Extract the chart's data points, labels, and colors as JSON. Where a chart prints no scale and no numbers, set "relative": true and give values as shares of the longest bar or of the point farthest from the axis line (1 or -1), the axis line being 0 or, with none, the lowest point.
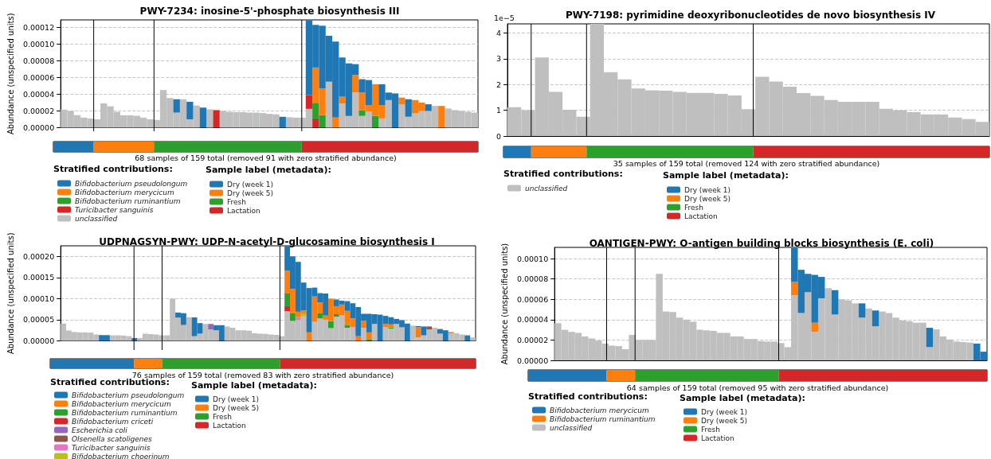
{
  "chart_data": [
    {
      "type": "bar",
      "title": "PWY-7234: inosine-5'-phosphate biosynthesis III",
      "ylabel": "Abundance (unspecified units)",
      "legend_title": "Stratified contributions:",
      "stacked": true,
      "grid": "y",
      "tick_labels": "y",
      "legend": "bottom left",
      "categories": [
        null,
        null,
        null,
        null,
        null,
        null,
        null,
        null,
        null,
        null,
        null,
        null,
        null,
        null,
        null,
        null,
        null,
        null,
        null,
        null,
        null,
        null,
        null,
        null,
        null,
        null,
        null,
        null,
        null,
        null,
        null,
        null,
        null,
        null,
        null,
        null,
        null,
        null,
        null,
        null,
        null,
        null,
        null,
        null,
        null,
        null,
        null,
        null,
        null,
        null,
        null,
        null,
        null,
        null,
        null,
        null,
        null,
        null,
        null,
        null,
        null,
        null,
        null
      ],
      "ylim": [
        0,
        0.000129
      ],
      "yticks": [
        {
          "value": 0,
          "label": "0.00000"
        },
        {
          "value": 2e-05,
          "label": "0.00002"
        },
        {
          "value": 4e-05,
          "label": "0.00004"
        },
        {
          "value": 6e-05,
          "label": "0.00006"
        },
        {
          "value": 8e-05,
          "label": "0.00008"
        },
        {
          "value": 0.0001,
          "label": "0.00010"
        },
        {
          "value": 0.00012,
          "label": "0.00012"
        }
      ],
      "series": [
        {
          "name": "unclassified",
          "color": "#bfbfbf",
          "values": [
            2.15e-05,
            2e-05,
            1.5e-05,
            1.2e-05,
            1.1e-05,
            1e-05,
            2.9e-05,
            2.55e-05,
            1.9e-05,
            1.48e-05,
            1.48e-05,
            1.42e-05,
            1.2e-05,
            1e-05,
            9.2e-06,
            4.5e-05,
            3.55e-05,
            1.8e-05,
            3.4e-05,
            1e-05,
            2.65e-05,
            null,
            2.2e-05,
            null,
            2e-05,
            1.9e-05,
            1.85e-05,
            1.85e-05,
            1.8e-05,
            1.8e-05,
            1.75e-05,
            1.65e-05,
            1.6e-05,
            null,
            1.25e-05,
            1.2e-05,
            1.2e-05,
            2.25e-05,
            null,
            null,
            5.5e-05,
            null,
            2.9e-05,
            1.4e-05,
            4.2e-05,
            1.4e-05,
            1.9e-05,
            null,
            1.1e-05,
            3.3e-05,
            null,
            2.8e-05,
            1.3e-05,
            1.7e-05,
            2e-05,
            2e-05,
            2.6e-05,
            null,
            2.3e-05,
            2.1e-05,
            2e-05,
            1.9e-05,
            1.8e-05
          ]
        },
        {
          "name": "Turicibacter sanguinis",
          "color": "#d62728",
          "values": [
            null,
            null,
            null,
            null,
            null,
            null,
            null,
            null,
            null,
            null,
            null,
            null,
            null,
            null,
            null,
            null,
            null,
            null,
            null,
            null,
            null,
            null,
            null,
            2.1e-05,
            null,
            null,
            null,
            null,
            null,
            null,
            null,
            null,
            null,
            null,
            null,
            null,
            null,
            1.65e-05,
            1.1e-05,
            null,
            null,
            null,
            null,
            null,
            null,
            null,
            null,
            null,
            null,
            null,
            null,
            null,
            null,
            null,
            null,
            null,
            null,
            null,
            null,
            null,
            null,
            null,
            null
          ]
        },
        {
          "name": "Bifidobacterium ruminantium",
          "color": "#2ca02c",
          "values": [
            null,
            null,
            null,
            null,
            null,
            null,
            null,
            null,
            null,
            null,
            null,
            null,
            null,
            null,
            null,
            null,
            null,
            null,
            null,
            null,
            null,
            null,
            null,
            null,
            null,
            null,
            null,
            null,
            null,
            null,
            null,
            null,
            null,
            null,
            null,
            null,
            null,
            null,
            1.8e-05,
            1.5e-05,
            null,
            null,
            null,
            null,
            null,
            7e-06,
            null,
            1.4e-05,
            null,
            null,
            null,
            null,
            null,
            null,
            null,
            null,
            null,
            null,
            null,
            null,
            null,
            null,
            null
          ]
        },
        {
          "name": "Bifidobacterium merycicum",
          "color": "#ff7f0e",
          "values": [
            null,
            null,
            null,
            null,
            null,
            null,
            null,
            null,
            null,
            null,
            null,
            null,
            null,
            null,
            null,
            null,
            null,
            null,
            null,
            null,
            null,
            null,
            null,
            null,
            null,
            null,
            null,
            null,
            null,
            null,
            null,
            null,
            null,
            null,
            null,
            null,
            null,
            null,
            4.3e-05,
            3.2e-05,
            null,
            1.2e-05,
            8e-06,
            null,
            2.1e-05,
            2.1e-05,
            8e-06,
            3.8e-05,
            1.6e-05,
            null,
            null,
            8e-06,
            null,
            1.6e-05,
            1e-05,
            null,
            null,
            2.6e-05,
            null,
            null,
            null,
            null,
            null
          ]
        },
        {
          "name": "Bifidobacterium pseudolongum",
          "color": "#1f77b4",
          "values": [
            null,
            null,
            null,
            null,
            null,
            null,
            null,
            null,
            null,
            null,
            null,
            null,
            null,
            null,
            null,
            null,
            null,
            1.6e-05,
            null,
            2.1e-05,
            null,
            2.4e-05,
            null,
            null,
            null,
            null,
            null,
            null,
            null,
            null,
            null,
            null,
            null,
            1.3e-05,
            null,
            null,
            null,
            8.95e-05,
            5.1e-05,
            7.5e-05,
            5.5e-05,
            9.1e-05,
            4.7e-05,
            6.3e-05,
            1.3e-05,
            1.6e-05,
            3e-05,
            null,
            2.5e-05,
            9e-06,
            4.1e-05,
            null,
            2.1e-05,
            null,
            null,
            8e-06,
            null,
            null,
            null,
            null,
            null,
            null,
            null
          ]
        }
      ]
    },
    {
      "type": "bar",
      "orientation": "horizontal",
      "stacked": true,
      "relative": true,
      "tick_labels": false,
      "legend": "bottom",
      "legend_title": "Sample label (metadata):",
      "xlabel": "68 samples of 159 total (removed 91 with zero stratified abundance)",
      "categories": [
        null
      ],
      "series": [
        {
          "name": "Dry (week 1)",
          "color": "#1f77b4",
          "values": [
            0.095
          ]
        },
        {
          "name": "Dry (week 5)",
          "color": "#ff7f0e",
          "values": [
            0.142
          ]
        },
        {
          "name": "Fresh",
          "color": "#2ca02c",
          "values": [
            0.348
          ]
        },
        {
          "name": "Lactation",
          "color": "#d62728",
          "values": [
            0.415
          ]
        }
      ]
    },
    {
      "type": "bar",
      "title": "PWY-7198: pyrimidine deoxyribonucleotides de novo biosynthesis IV",
      "legend_title": "Stratified contributions:",
      "stacked": true,
      "grid": "y",
      "tick_labels": "y",
      "legend": "bottom left",
      "annotations": [
        "1e−5"
      ],
      "categories": [
        null,
        null,
        null,
        null,
        null,
        null,
        null,
        null,
        null,
        null,
        null,
        null,
        null,
        null,
        null,
        null,
        null,
        null,
        null,
        null,
        null,
        null,
        null,
        null,
        null,
        null,
        null,
        null,
        null,
        null,
        null,
        null,
        null,
        null,
        null
      ],
      "ylim": [
        0,
        4.36
      ],
      "yticks": [
        0,
        1,
        2,
        3,
        4
      ],
      "series": [
        {
          "name": "unclassified",
          "color": "#bfbfbf",
          "values": [
            1.12,
            1.0,
            3.05,
            1.72,
            1.02,
            0.75,
            4.36,
            2.48,
            2.2,
            1.85,
            1.78,
            1.76,
            1.72,
            1.68,
            1.68,
            1.64,
            1.58,
            1.04,
            2.3,
            2.12,
            1.92,
            1.67,
            1.56,
            1.4,
            1.33,
            1.33,
            1.33,
            1.06,
            1.0,
            0.93,
            0.84,
            0.84,
            0.72,
            0.66,
            0.55
          ]
        }
      ]
    },
    {
      "type": "bar",
      "orientation": "horizontal",
      "stacked": true,
      "relative": true,
      "tick_labels": false,
      "legend": "bottom",
      "legend_title": "Sample label (metadata):",
      "xlabel": "35 samples of 159 total (removed 124 with zero stratified abundance)",
      "categories": [
        null
      ],
      "series": [
        {
          "name": "Dry (week 1)",
          "color": "#1f77b4",
          "values": [
            0.057
          ]
        },
        {
          "name": "Dry (week 5)",
          "color": "#ff7f0e",
          "values": [
            0.114
          ]
        },
        {
          "name": "Fresh",
          "color": "#2ca02c",
          "values": [
            0.343
          ]
        },
        {
          "name": "Lactation",
          "color": "#d62728",
          "values": [
            0.486
          ]
        }
      ]
    },
    {
      "type": "bar",
      "title": "UDPNAGSYN-PWY: UDP-N-acetyl-D-glucosamine biosynthesis I",
      "ylabel": "Abundance (unspecified units)",
      "legend_title": "Stratified contributions:",
      "stacked": true,
      "grid": "y",
      "tick_labels": "y",
      "legend": "bottom left",
      "categories": [
        null,
        null,
        null,
        null,
        null,
        null,
        null,
        null,
        null,
        null,
        null,
        null,
        null,
        null,
        null,
        null,
        null,
        null,
        null,
        null,
        null,
        null,
        null,
        null,
        null,
        null,
        null,
        null,
        null,
        null,
        null,
        null,
        null,
        null,
        null,
        null,
        null,
        null,
        null,
        null,
        null,
        null,
        null,
        null,
        null,
        null,
        null,
        null,
        null,
        null,
        null,
        null,
        null,
        null,
        null,
        null,
        null,
        null,
        null,
        null,
        null,
        null,
        null,
        null,
        null,
        null,
        null,
        null,
        null,
        null,
        null,
        null,
        null,
        null,
        null,
        null
      ],
      "ylim": [
        0,
        0.000225
      ],
      "yticks": [
        {
          "value": 0,
          "label": "0.00000"
        },
        {
          "value": 5e-05,
          "label": "0.00005"
        },
        {
          "value": 0.0001,
          "label": "0.00010"
        },
        {
          "value": 0.00015,
          "label": "0.00015"
        },
        {
          "value": 0.0002,
          "label": "0.00020"
        }
      ],
      "series": [
        {
          "color": "#bfbfbf",
          "values": [
            4.1e-05,
            2.45e-05,
            2.1e-05,
            2e-05,
            2e-05,
            1.95e-05,
            1.5e-05,
            null,
            null,
            1.3e-05,
            1.3e-05,
            1.25e-05,
            1.1e-05,
            null,
            6.5e-06,
            1.7e-05,
            1.6e-05,
            1.5e-05,
            1.3e-05,
            1.3e-05,
            0.0001,
            5.5e-05,
            3.75e-05,
            5.6e-05,
            1.1e-05,
            1.7e-05,
            4e-05,
            2.7e-05,
            2.5e-05,
            null,
            3.4e-05,
            3.1e-05,
            2.5e-05,
            2.5e-05,
            2.4e-05,
            1.8e-05,
            1.7e-05,
            1.65e-05,
            1.5e-05,
            1.4e-05,
            1.1e-05,
            7e-05,
            4.7e-05,
            4.9e-05,
            5.8e-05,
            null,
            4.5e-05,
            5.3e-05,
            5e-05,
            3e-05,
            5.7e-05,
            6e-05,
            3.1e-05,
            3.3e-05,
            null,
            3.1e-05,
            null,
            4e-05,
            null,
            3.3e-05,
            2.9e-05,
            4e-05,
            3.2e-05,
            null,
            3.6e-05,
            8e-06,
            1.3e-05,
            2.7e-05,
            3.1e-05,
            1.7e-05,
            null,
            1.8e-05,
            1.8e-05,
            1.5e-05,
            null,
            8e-06
          ]
        },
        {
          "name": "Bifidobacterium choerinum",
          "color": "#bcbd22",
          "values": [
            null,
            null,
            null,
            null,
            null,
            null,
            null,
            null,
            null,
            null,
            null,
            null,
            null,
            null,
            null,
            null,
            null,
            null,
            null,
            null,
            null,
            null,
            null,
            null,
            null,
            null,
            null,
            null,
            null,
            null,
            null,
            null,
            null,
            null,
            null,
            null,
            null,
            null,
            null,
            null,
            null,
            null,
            null,
            null,
            7e-06,
            null,
            null,
            null,
            null,
            null,
            null,
            null,
            null,
            null,
            null,
            null,
            null,
            null,
            null,
            null,
            null,
            null,
            null,
            null,
            null,
            null,
            null,
            null,
            null,
            null,
            null,
            null,
            null,
            null,
            null,
            null
          ]
        },
        {
          "name": "Turicibacter sanguinis",
          "color": "#e377c2",
          "values": [
            null,
            null,
            null,
            null,
            null,
            null,
            null,
            null,
            null,
            null,
            null,
            null,
            null,
            null,
            null,
            null,
            null,
            null,
            null,
            null,
            null,
            null,
            null,
            null,
            null,
            null,
            null,
            null,
            null,
            null,
            null,
            null,
            null,
            null,
            null,
            null,
            null,
            null,
            null,
            null,
            null,
            null,
            null,
            7e-06,
            null,
            null,
            null,
            null,
            null,
            null,
            null,
            null,
            null,
            null,
            null,
            null,
            null,
            null,
            null,
            null,
            null,
            null,
            null,
            null,
            null,
            null,
            null,
            null,
            null,
            null,
            null,
            null,
            null,
            null,
            null,
            null
          ]
        },
        {
          "name": "Olsenella scatoligenes",
          "color": "#8c564b",
          "values": [
            null,
            null,
            null,
            null,
            null,
            null,
            null,
            null,
            null,
            null,
            null,
            null,
            null,
            null,
            null,
            null,
            null,
            null,
            null,
            null,
            null,
            null,
            null,
            null,
            null,
            null,
            null,
            null,
            null,
            null,
            null,
            null,
            null,
            null,
            null,
            null,
            null,
            null,
            null,
            null,
            null,
            null,
            null,
            null,
            null,
            null,
            null,
            null,
            null,
            null,
            null,
            null,
            null,
            null,
            null,
            null,
            null,
            null,
            null,
            null,
            null,
            null,
            null,
            null,
            null,
            null,
            null,
            7e-06,
            null,
            null,
            null,
            null,
            null,
            null,
            null,
            null
          ]
        },
        {
          "name": "Escherichia coli",
          "color": "#9467bd",
          "values": [
            null,
            null,
            null,
            null,
            null,
            null,
            null,
            null,
            null,
            null,
            null,
            null,
            null,
            null,
            null,
            null,
            null,
            null,
            null,
            null,
            null,
            null,
            null,
            null,
            null,
            null,
            null,
            1.3e-05,
            null,
            null,
            null,
            null,
            null,
            null,
            null,
            null,
            null,
            null,
            null,
            null,
            null,
            null,
            null,
            null,
            null,
            null,
            null,
            null,
            null,
            null,
            null,
            null,
            null,
            null,
            null,
            null,
            null,
            null,
            null,
            null,
            null,
            null,
            null,
            null,
            null,
            null,
            null,
            null,
            null,
            null,
            null,
            null,
            null,
            null,
            null,
            null
          ]
        },
        {
          "name": "Bifidobacterium criceti",
          "color": "#d62728",
          "values": [
            null,
            null,
            null,
            null,
            null,
            null,
            null,
            null,
            null,
            null,
            null,
            null,
            null,
            null,
            null,
            null,
            null,
            null,
            null,
            null,
            null,
            null,
            null,
            null,
            null,
            null,
            null,
            null,
            null,
            null,
            null,
            null,
            null,
            null,
            null,
            null,
            null,
            null,
            null,
            null,
            null,
            1.2e-05,
            null,
            null,
            null,
            null,
            null,
            null,
            null,
            null,
            null,
            null,
            null,
            null,
            null,
            null,
            null,
            null,
            null,
            null,
            null,
            null,
            null,
            null,
            null,
            null,
            null,
            null,
            null,
            null,
            null,
            null,
            null,
            null,
            null,
            null
          ]
        },
        {
          "name": "Bifidobacterium ruminantium",
          "color": "#2ca02c",
          "values": [
            null,
            null,
            null,
            null,
            null,
            null,
            null,
            null,
            null,
            null,
            null,
            null,
            null,
            null,
            null,
            null,
            null,
            null,
            null,
            null,
            null,
            null,
            null,
            null,
            null,
            null,
            null,
            null,
            null,
            null,
            null,
            null,
            null,
            null,
            null,
            null,
            null,
            null,
            null,
            null,
            null,
            3e-05,
            1.8e-05,
            null,
            null,
            null,
            null,
            1.2e-05,
            null,
            1.7e-05,
            6e-06,
            null,
            7e-06,
            null,
            null,
            null,
            4e-06,
            null,
            null,
            null,
            3e-06,
            null,
            null,
            null,
            null,
            null,
            null,
            null,
            null,
            null,
            null,
            null,
            null,
            null,
            null,
            null
          ]
        },
        {
          "name": "Bifidobacterium merycicum",
          "color": "#ff7f0e",
          "values": [
            null,
            null,
            null,
            null,
            null,
            null,
            null,
            null,
            null,
            null,
            null,
            null,
            null,
            null,
            null,
            null,
            null,
            null,
            null,
            null,
            null,
            null,
            null,
            null,
            null,
            null,
            null,
            null,
            null,
            null,
            null,
            null,
            null,
            null,
            null,
            null,
            null,
            null,
            null,
            null,
            null,
            5.4e-05,
            5.8e-05,
            1.3e-05,
            7e-06,
            2e-05,
            6e-05,
            2.6e-05,
            1e-05,
            5.3e-05,
            1.9e-05,
            2.6e-05,
            3.3e-05,
            2e-05,
            1.1e-05,
            1.6e-05,
            1.6e-05,
            null,
            null,
            7e-06,
            7e-06,
            null,
            null,
            null,
            null,
            2.4e-05,
            null,
            null,
            null,
            null,
            null,
            3e-06,
            null,
            null,
            null,
            null
          ]
        },
        {
          "name": "Bifidobacterium pseudolongum",
          "color": "#1f77b4",
          "values": [
            null,
            null,
            null,
            null,
            null,
            null,
            null,
            1.35e-05,
            1.35e-05,
            null,
            null,
            null,
            null,
            6.5e-06,
            null,
            null,
            null,
            null,
            null,
            null,
            null,
            1.2e-05,
            2.8e-05,
            null,
            4.45e-05,
            2.5e-05,
            null,
            null,
            1.2e-05,
            3.7e-05,
            null,
            null,
            null,
            null,
            null,
            null,
            null,
            null,
            null,
            null,
            null,
            5.8e-05,
            7.7e-05,
            0.000118,
            6.6e-05,
            0.000105,
            2.1e-05,
            2.2e-05,
            5.2e-05,
            null,
            1.6e-05,
            9e-06,
            2.3e-05,
            3.6e-05,
            6.9e-05,
            1.7e-05,
            4.4e-05,
            2.3e-05,
            6.2e-05,
            1.9e-05,
            1.7e-05,
            1.2e-05,
            1.7e-05,
            4.1e-05,
            null,
            3e-06,
            2.1e-05,
            null,
            null,
            1.1e-05,
            2.5e-05,
            null,
            null,
            null,
            1.3e-05,
            null
          ]
        }
      ]
    },
    {
      "type": "bar",
      "orientation": "horizontal",
      "stacked": true,
      "relative": true,
      "tick_labels": false,
      "legend": "bottom",
      "legend_title": "Sample label (metadata):",
      "xlabel": "76 samples of 159 total (removed 83 with zero stratified abundance)",
      "categories": [
        null
      ],
      "series": [
        {
          "name": "Dry (week 1)",
          "color": "#1f77b4",
          "values": [
            0.197
          ]
        },
        {
          "name": "Dry (week 5)",
          "color": "#ff7f0e",
          "values": [
            0.066
          ]
        },
        {
          "name": "Fresh",
          "color": "#2ca02c",
          "values": [
            0.277
          ]
        },
        {
          "name": "Lactation",
          "color": "#d62728",
          "values": [
            0.46
          ]
        }
      ]
    },
    {
      "type": "bar",
      "title": "OANTIGEN-PWY: O-antigen building blocks biosynthesis (E. coli)",
      "ylabel": "Abundance (unspecified units)",
      "legend_title": "Stratified contributions:",
      "stacked": true,
      "grid": "y",
      "tick_labels": "y",
      "legend": "bottom left",
      "categories": [
        null,
        null,
        null,
        null,
        null,
        null,
        null,
        null,
        null,
        null,
        null,
        null,
        null,
        null,
        null,
        null,
        null,
        null,
        null,
        null,
        null,
        null,
        null,
        null,
        null,
        null,
        null,
        null,
        null,
        null,
        null,
        null,
        null,
        null,
        null,
        null,
        null,
        null,
        null,
        null,
        null,
        null,
        null,
        null,
        null,
        null,
        null,
        null,
        null,
        null,
        null,
        null,
        null,
        null,
        null,
        null,
        null,
        null,
        null,
        null,
        null,
        null,
        null,
        null
      ],
      "ylim": [
        0,
        0.000111
      ],
      "yticks": [
        {
          "value": 0,
          "label": "0.00000"
        },
        {
          "value": 2e-05,
          "label": "0.00002"
        },
        {
          "value": 4e-05,
          "label": "0.00004"
        },
        {
          "value": 6e-05,
          "label": "0.00006"
        },
        {
          "value": 8e-05,
          "label": "0.00008"
        },
        {
          "value": 0.0001,
          "label": "0.00010"
        }
      ],
      "series": [
        {
          "name": "unclassified",
          "color": "#bfbfbf",
          "values": [
            3.65e-05,
            3e-05,
            2.8e-05,
            2.7e-05,
            2.35e-05,
            2.15e-05,
            1.95e-05,
            1.65e-05,
            1.45e-05,
            1.4e-05,
            1.1e-05,
            2.5e-05,
            2e-05,
            2e-05,
            2e-05,
            8.5e-05,
            4.8e-05,
            4.75e-05,
            4.2e-05,
            4e-05,
            3.8e-05,
            3e-05,
            2.95e-05,
            2.9e-05,
            2.7e-05,
            2.7e-05,
            2.35e-05,
            2.35e-05,
            2.1e-05,
            2.1e-05,
            1.9e-05,
            1.85e-05,
            1.85e-05,
            1.7e-05,
            1.3e-05,
            6.4e-05,
            4.65e-05,
            6.7e-05,
            2.8e-05,
            6.1e-05,
            7.1e-05,
            4.5e-05,
            6e-05,
            5.9e-05,
            5.6e-05,
            4.2e-05,
            5.1e-05,
            3.35e-05,
            4.8e-05,
            4.65e-05,
            4.2e-05,
            3.9e-05,
            3.85e-05,
            3.7e-05,
            3.7e-05,
            1.3e-05,
            3.05e-05,
            2.35e-05,
            2.05e-05,
            1.85e-05,
            1.8e-05,
            1.75e-05,
            null,
            null
          ]
        },
        {
          "name": "Bifidobacterium ruminantium",
          "color": "#ff7f0e",
          "values": [
            null,
            null,
            null,
            null,
            null,
            null,
            null,
            null,
            null,
            null,
            null,
            null,
            null,
            null,
            null,
            null,
            null,
            null,
            null,
            null,
            null,
            null,
            null,
            null,
            null,
            null,
            null,
            null,
            null,
            null,
            null,
            null,
            null,
            null,
            null,
            1.3e-05,
            null,
            null,
            9e-06,
            null,
            null,
            null,
            null,
            null,
            null,
            null,
            null,
            null,
            null,
            null,
            null,
            null,
            null,
            null,
            null,
            null,
            null,
            null,
            null,
            null,
            null,
            null,
            null,
            null
          ]
        },
        {
          "name": "Bifidobacterium merycicum",
          "color": "#1f77b4",
          "values": [
            null,
            null,
            null,
            null,
            null,
            null,
            null,
            null,
            null,
            null,
            null,
            null,
            null,
            null,
            null,
            null,
            null,
            null,
            null,
            null,
            null,
            null,
            null,
            null,
            null,
            null,
            null,
            null,
            null,
            null,
            null,
            null,
            null,
            null,
            null,
            3.35e-05,
            4.25e-05,
            1.8e-05,
            4.7e-05,
            2.1e-05,
            null,
            2.4e-05,
            null,
            null,
            null,
            1.4e-05,
            null,
            1.55e-05,
            null,
            null,
            null,
            null,
            null,
            null,
            null,
            1.9e-05,
            null,
            null,
            null,
            null,
            null,
            null,
            1.65e-05,
            8.5e-06
          ]
        }
      ]
    },
    {
      "type": "bar",
      "orientation": "horizontal",
      "stacked": true,
      "relative": true,
      "tick_labels": false,
      "legend": "bottom",
      "legend_title": "Sample label (metadata):",
      "xlabel": "64 samples of 159 total (removed 95 with zero stratified abundance)",
      "categories": [
        null
      ],
      "series": [
        {
          "name": "Dry (week 1)",
          "color": "#1f77b4",
          "values": [
            0.171
          ]
        },
        {
          "name": "Dry (week 5)",
          "color": "#ff7f0e",
          "values": [
            0.062
          ]
        },
        {
          "name": "Fresh",
          "color": "#2ca02c",
          "values": [
            0.313
          ]
        },
        {
          "name": "Lactation",
          "color": "#d62728",
          "values": [
            0.454
          ]
        }
      ]
    }
  ]
}
